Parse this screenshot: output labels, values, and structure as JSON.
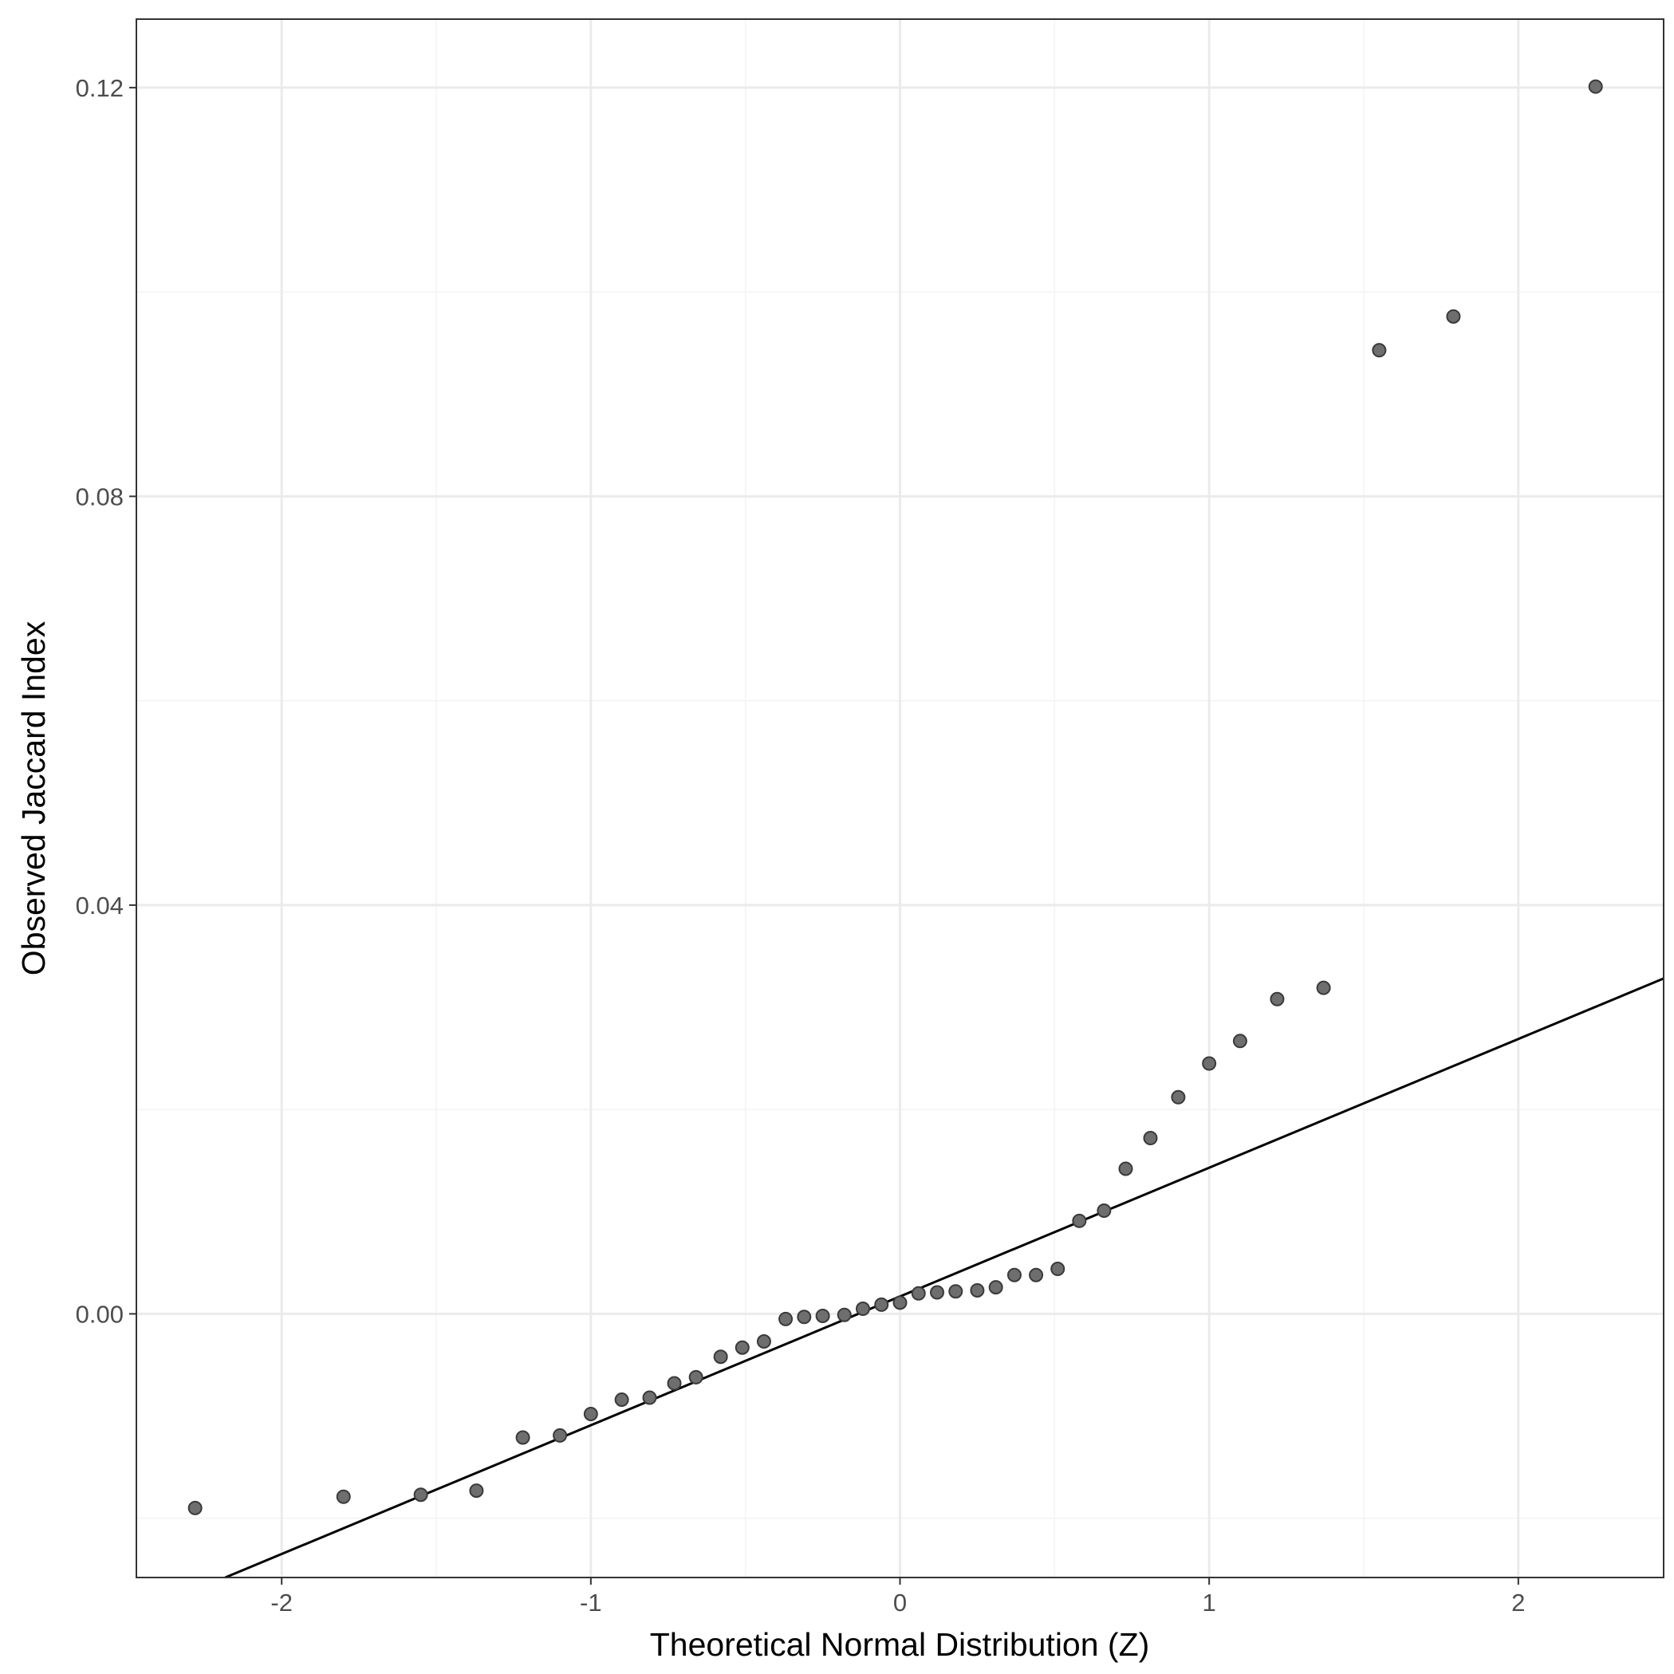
{
  "chart_data": {
    "type": "scatter",
    "title": "",
    "xlabel": "Theoretical Normal Distribution (Z)",
    "ylabel": "Observed Jaccard Index",
    "xlim": [
      -2.47,
      2.47
    ],
    "ylim": [
      -0.0258,
      0.1267
    ],
    "x_ticks": [
      -2,
      -1,
      0,
      1,
      2
    ],
    "x_tick_labels": [
      "-2",
      "-1",
      "0",
      "1",
      "2"
    ],
    "y_ticks": [
      0.0,
      0.04,
      0.08,
      0.12
    ],
    "y_tick_labels": [
      "0.00",
      "0.04",
      "0.08",
      "0.12"
    ],
    "grid": true,
    "legend": "none",
    "colors": {
      "background": "#ffffff",
      "panel_border": "#333333",
      "grid_major": "#ebebeb",
      "grid_minor": "#f3f3f3",
      "point_fill": "#6e6e6e",
      "point_stroke": "#3a3a3a",
      "reference_line": "#000000"
    },
    "reference_line": {
      "intercept": 0.0017,
      "slope": 0.0126
    },
    "points": [
      {
        "x": -2.28,
        "y": -0.019
      },
      {
        "x": -1.8,
        "y": -0.0179
      },
      {
        "x": -1.55,
        "y": -0.0177
      },
      {
        "x": -1.37,
        "y": -0.0173
      },
      {
        "x": -1.22,
        "y": -0.0121
      },
      {
        "x": -1.1,
        "y": -0.0119
      },
      {
        "x": -1.0,
        "y": -0.0098
      },
      {
        "x": -0.9,
        "y": -0.0084
      },
      {
        "x": -0.81,
        "y": -0.0082
      },
      {
        "x": -0.73,
        "y": -0.0068
      },
      {
        "x": -0.66,
        "y": -0.0062
      },
      {
        "x": -0.58,
        "y": -0.0042
      },
      {
        "x": -0.51,
        "y": -0.0033
      },
      {
        "x": -0.44,
        "y": -0.0027
      },
      {
        "x": -0.37,
        "y": -0.0005
      },
      {
        "x": -0.31,
        "y": -0.0003
      },
      {
        "x": -0.25,
        "y": -0.0002
      },
      {
        "x": -0.18,
        "y": -0.0001
      },
      {
        "x": -0.12,
        "y": 0.0005
      },
      {
        "x": -0.06,
        "y": 0.0009
      },
      {
        "x": 0.0,
        "y": 0.0011
      },
      {
        "x": 0.06,
        "y": 0.002
      },
      {
        "x": 0.12,
        "y": 0.0021
      },
      {
        "x": 0.18,
        "y": 0.0022
      },
      {
        "x": 0.25,
        "y": 0.0023
      },
      {
        "x": 0.31,
        "y": 0.0026
      },
      {
        "x": 0.37,
        "y": 0.0038
      },
      {
        "x": 0.44,
        "y": 0.0038
      },
      {
        "x": 0.51,
        "y": 0.0044
      },
      {
        "x": 0.58,
        "y": 0.0091
      },
      {
        "x": 0.66,
        "y": 0.0101
      },
      {
        "x": 0.73,
        "y": 0.0142
      },
      {
        "x": 0.81,
        "y": 0.0172
      },
      {
        "x": 0.9,
        "y": 0.0212
      },
      {
        "x": 1.0,
        "y": 0.0245
      },
      {
        "x": 1.1,
        "y": 0.0267
      },
      {
        "x": 1.22,
        "y": 0.0308
      },
      {
        "x": 1.37,
        "y": 0.0319
      },
      {
        "x": 1.55,
        "y": 0.0943
      },
      {
        "x": 1.79,
        "y": 0.0976
      },
      {
        "x": 2.25,
        "y": 0.1201
      }
    ]
  }
}
